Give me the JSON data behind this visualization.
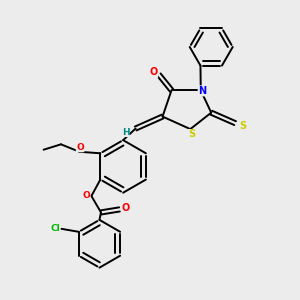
{
  "background_color": "#ececec",
  "bond_color": "#000000",
  "atom_colors": {
    "O": "#ff0000",
    "N": "#0000ff",
    "S": "#cccc00",
    "Cl": "#00bb00",
    "H": "#008888",
    "C": "#000000"
  },
  "lw": 1.4
}
